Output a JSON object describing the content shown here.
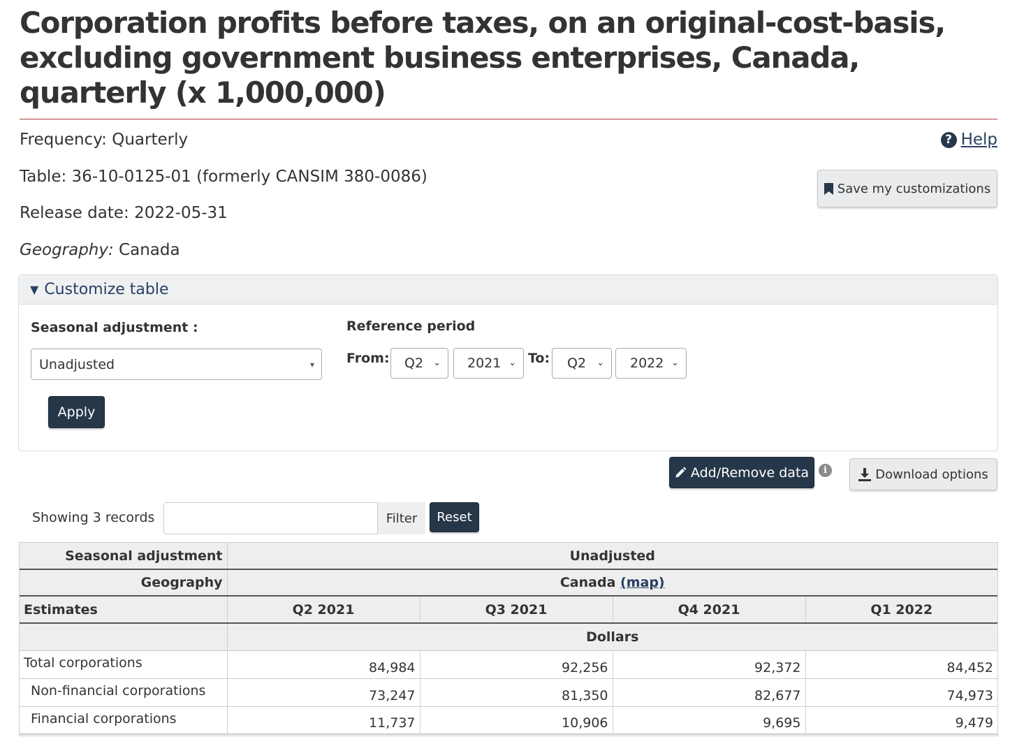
{
  "title": "Corporation profits before taxes, on an original-cost-basis, excluding government business enterprises, Canada, quarterly (x 1,000,000)",
  "meta": {
    "frequency_label": "Frequency:",
    "frequency_value": "Quarterly",
    "table_label": "Table:",
    "table_value": "36-10-0125-01 (formerly CANSIM 380-0086)",
    "release_label": "Release date:",
    "release_value": "2022-05-31",
    "geography_label": "Geography:",
    "geography_value": "Canada"
  },
  "help": {
    "icon": "question-circle-icon",
    "label": "Help"
  },
  "save_button": {
    "icon": "bookmark-icon",
    "label": "Save my customizations"
  },
  "customize": {
    "toggle_label": "Customize table",
    "seasonal_label": "Seasonal adjustment :",
    "seasonal_value": "Unadjusted",
    "reference_label": "Reference period",
    "from_label": "From:",
    "from_quarter": "Q2",
    "from_year": "2021",
    "to_label": "To:",
    "to_quarter": "Q2",
    "to_year": "2022",
    "apply_label": "Apply"
  },
  "actions": {
    "add_remove_icon": "pencil-icon",
    "add_remove_label": "Add/Remove data",
    "info_icon": "info-icon",
    "download_icon": "download-icon",
    "download_label": "Download options"
  },
  "filter": {
    "showing_text": "Showing 3 records",
    "input_value": "",
    "filter_label": "Filter",
    "reset_label": "Reset"
  },
  "table": {
    "row_header_seasonal": "Seasonal adjustment",
    "seasonal_value": "Unadjusted",
    "row_header_geography": "Geography",
    "geography_value": "Canada",
    "map_link": "(map)",
    "estimates_label": "Estimates",
    "columns": [
      "Q2 2021",
      "Q3 2021",
      "Q4 2021",
      "Q1 2022"
    ],
    "units": "Dollars",
    "rows": [
      {
        "label": "Total corporations",
        "values": [
          "84,984",
          "92,256",
          "92,372",
          "84,452"
        ]
      },
      {
        "label": "Non-financial corporations",
        "values": [
          "73,247",
          "81,350",
          "82,677",
          "74,973"
        ]
      },
      {
        "label": "Financial corporations",
        "values": [
          "11,737",
          "10,906",
          "9,695",
          "9,479"
        ]
      }
    ]
  },
  "colors": {
    "primary_dark": "#26374a",
    "link": "#284162",
    "title_rule": "#af3c43",
    "header_bg": "#eeeeee"
  }
}
